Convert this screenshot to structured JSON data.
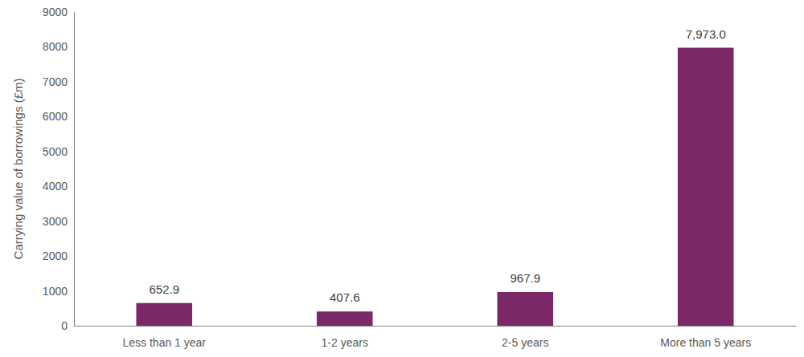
{
  "chart_data": {
    "type": "bar",
    "y_label": "Carrying value of borrowings (£m)",
    "categories": [
      "Less than 1 year",
      "1-2 years",
      "2-5 years",
      "More than 5 years"
    ],
    "values": [
      652.9,
      407.6,
      967.9,
      7973.0
    ],
    "value_labels": [
      "652.9",
      "407.6",
      "967.9",
      "7,973.0"
    ],
    "color": "#7b2869",
    "ylim": [
      0,
      9000
    ],
    "yticks": [
      0,
      1000,
      2000,
      3000,
      4000,
      5000,
      6000,
      7000,
      8000,
      9000
    ],
    "grid": false,
    "data_labels": true
  }
}
